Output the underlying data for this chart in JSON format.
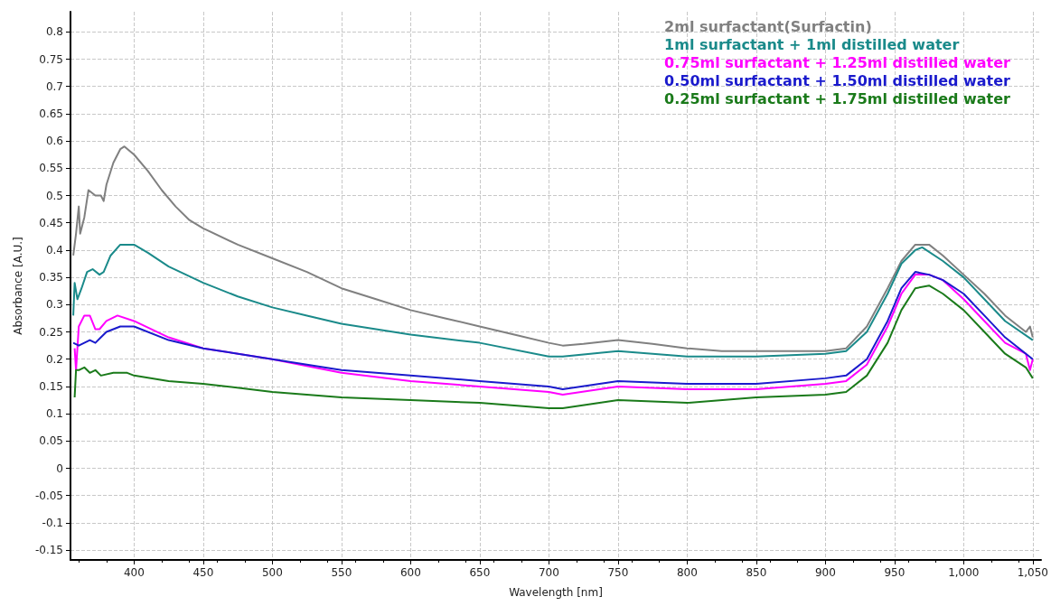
{
  "chart_data": {
    "type": "line",
    "xlabel": "Wavelength [nm]",
    "ylabel": "Absorbance [A.U.]",
    "xlim": [
      354,
      1056
    ],
    "ylim": [
      -0.168,
      0.837
    ],
    "xticks": [
      400,
      450,
      500,
      550,
      600,
      650,
      700,
      750,
      800,
      850,
      900,
      950,
      {
        "value": 1000,
        "label": "1,000"
      },
      {
        "value": 1050,
        "label": "1,050"
      }
    ],
    "yticks": [
      -0.15,
      -0.1,
      -0.05,
      0,
      0.05,
      0.1,
      0.15,
      0.2,
      0.25,
      0.3,
      0.35,
      0.4,
      0.45,
      0.5,
      0.55,
      0.6,
      0.65,
      0.7,
      0.75,
      0.8
    ],
    "grid": true,
    "legend": "top right",
    "marker": "none",
    "line_style": "solid",
    "series": [
      {
        "name": "2ml surfactant(Surfactin)",
        "color": "#808080",
        "x": [
          356,
          358,
          360,
          361,
          364,
          367,
          372,
          376,
          378,
          380,
          385,
          390,
          393,
          400,
          410,
          420,
          430,
          440,
          450,
          475,
          500,
          525,
          550,
          575,
          600,
          625,
          650,
          675,
          700,
          710,
          725,
          750,
          775,
          800,
          825,
          850,
          875,
          900,
          915,
          930,
          945,
          955,
          965,
          975,
          985,
          1000,
          1015,
          1030,
          1045,
          1048,
          1050
        ],
        "values": [
          0.39,
          0.43,
          0.48,
          0.43,
          0.46,
          0.51,
          0.5,
          0.5,
          0.49,
          0.52,
          0.56,
          0.585,
          0.59,
          0.575,
          0.545,
          0.51,
          0.48,
          0.455,
          0.44,
          0.41,
          0.385,
          0.36,
          0.33,
          0.31,
          0.29,
          0.275,
          0.26,
          0.245,
          0.23,
          0.225,
          0.228,
          0.235,
          0.228,
          0.22,
          0.215,
          0.215,
          0.215,
          0.215,
          0.22,
          0.26,
          0.33,
          0.38,
          0.41,
          0.41,
          0.39,
          0.355,
          0.32,
          0.28,
          0.25,
          0.26,
          0.24
        ]
      },
      {
        "name": "1ml surfactant + 1ml distilled water",
        "color": "#1a8a8a",
        "x": [
          356,
          357,
          359,
          362,
          366,
          370,
          375,
          378,
          383,
          390,
          400,
          410,
          425,
          450,
          475,
          500,
          525,
          550,
          575,
          600,
          650,
          700,
          710,
          750,
          775,
          800,
          850,
          900,
          915,
          930,
          945,
          955,
          965,
          970,
          985,
          1000,
          1015,
          1030,
          1050
        ],
        "values": [
          0.28,
          0.34,
          0.31,
          0.33,
          0.36,
          0.365,
          0.355,
          0.36,
          0.39,
          0.41,
          0.41,
          0.395,
          0.37,
          0.34,
          0.315,
          0.295,
          0.28,
          0.265,
          0.255,
          0.245,
          0.23,
          0.205,
          0.205,
          0.215,
          0.21,
          0.205,
          0.205,
          0.21,
          0.215,
          0.25,
          0.32,
          0.375,
          0.4,
          0.405,
          0.38,
          0.35,
          0.31,
          0.27,
          0.235
        ]
      },
      {
        "name": "0.75ml surfactant + 1.25ml distilled water",
        "color": "#ff00ff",
        "x": [
          357,
          358,
          360,
          364,
          368,
          372,
          375,
          380,
          388,
          400,
          425,
          450,
          500,
          550,
          600,
          650,
          700,
          710,
          750,
          800,
          850,
          900,
          915,
          930,
          945,
          955,
          965,
          975,
          985,
          1000,
          1015,
          1030,
          1045,
          1048,
          1050
        ],
        "values": [
          0.22,
          0.18,
          0.26,
          0.28,
          0.28,
          0.255,
          0.255,
          0.27,
          0.28,
          0.27,
          0.24,
          0.22,
          0.2,
          0.175,
          0.16,
          0.15,
          0.14,
          0.135,
          0.15,
          0.145,
          0.145,
          0.155,
          0.16,
          0.19,
          0.26,
          0.32,
          0.355,
          0.355,
          0.345,
          0.31,
          0.27,
          0.23,
          0.21,
          0.18,
          0.2
        ]
      },
      {
        "name": "0.50ml surfactant + 1.50ml distilled water",
        "color": "#1a1acc",
        "x": [
          356,
          360,
          364,
          368,
          372,
          376,
          380,
          390,
          400,
          425,
          450,
          500,
          550,
          600,
          650,
          700,
          710,
          750,
          800,
          850,
          900,
          915,
          930,
          945,
          955,
          965,
          975,
          985,
          1000,
          1015,
          1030,
          1050
        ],
        "values": [
          0.23,
          0.225,
          0.23,
          0.235,
          0.23,
          0.24,
          0.25,
          0.26,
          0.26,
          0.235,
          0.22,
          0.2,
          0.18,
          0.17,
          0.16,
          0.15,
          0.145,
          0.16,
          0.155,
          0.155,
          0.165,
          0.17,
          0.2,
          0.27,
          0.33,
          0.36,
          0.355,
          0.345,
          0.32,
          0.28,
          0.24,
          0.2
        ]
      },
      {
        "name": "0.25ml surfactant + 1.75ml distilled water",
        "color": "#1a7a1a",
        "x": [
          357,
          358,
          360,
          364,
          368,
          372,
          376,
          385,
          395,
          400,
          425,
          450,
          500,
          550,
          600,
          650,
          700,
          710,
          750,
          800,
          850,
          900,
          915,
          930,
          945,
          955,
          965,
          975,
          985,
          1000,
          1015,
          1030,
          1045,
          1050
        ],
        "values": [
          0.13,
          0.18,
          0.18,
          0.185,
          0.175,
          0.18,
          0.17,
          0.175,
          0.175,
          0.17,
          0.16,
          0.155,
          0.14,
          0.13,
          0.125,
          0.12,
          0.11,
          0.11,
          0.125,
          0.12,
          0.13,
          0.135,
          0.14,
          0.17,
          0.23,
          0.29,
          0.33,
          0.335,
          0.32,
          0.29,
          0.25,
          0.21,
          0.185,
          0.165
        ]
      }
    ]
  }
}
